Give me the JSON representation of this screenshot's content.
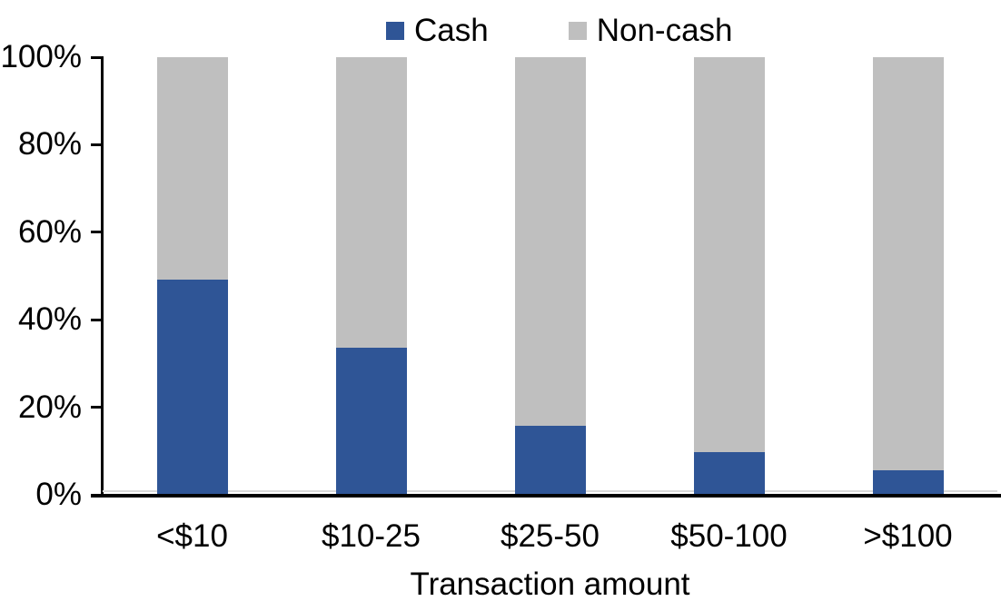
{
  "colors": {
    "cash": "#2F5596",
    "non_cash": "#BFBFBF",
    "axis": "#000000",
    "zero_line": "#D9D9D9",
    "background": "#FFFFFF",
    "text": "#000000"
  },
  "chart_data": {
    "type": "bar",
    "stacked": true,
    "units": "percent",
    "xlabel": "Transaction amount",
    "ylabel": "",
    "categories": [
      "<$10",
      "$10-25",
      "$25-50",
      "$50-100",
      ">$100"
    ],
    "series": [
      {
        "name": "Cash",
        "color": "#2F5596",
        "values": [
          49,
          33.5,
          15.5,
          9.5,
          5.5
        ]
      },
      {
        "name": "Non-cash",
        "color": "#BFBFBF",
        "values": [
          51,
          66.5,
          84.5,
          90.5,
          94.5
        ]
      }
    ],
    "ylim": [
      0,
      100
    ],
    "yticks": [
      0,
      20,
      40,
      60,
      80,
      100
    ],
    "ytick_labels": [
      "0%",
      "20%",
      "40%",
      "60%",
      "80%",
      "100%"
    ],
    "legend_position": "top",
    "grid": false
  }
}
